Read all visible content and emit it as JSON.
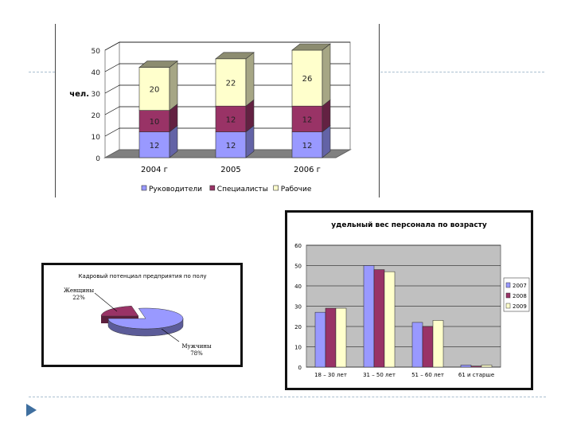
{
  "slide": {
    "accent_color": "#a9bfd0",
    "bullet_color": "#3f6f9f"
  },
  "chart_data": [
    {
      "type": "bar",
      "stacked": true,
      "three_d": true,
      "title": "",
      "ylabel": "чел.",
      "ylim": [
        0,
        50
      ],
      "yticks": [
        "0",
        "10",
        "20",
        "30",
        "40",
        "50"
      ],
      "categories": [
        "2004 г",
        "2005",
        "2006 г"
      ],
      "series": [
        {
          "name": "Руководители",
          "color": "#9999ff",
          "values": [
            12,
            12,
            12
          ]
        },
        {
          "name": "Специалисты",
          "color": "#993366",
          "values": [
            10,
            12,
            12
          ]
        },
        {
          "name": "Рабочие",
          "color": "#ffffcc",
          "values": [
            20,
            22,
            26
          ]
        }
      ],
      "legend": "bottom",
      "grid": true
    },
    {
      "type": "bar",
      "title": "удельный вес персонала по возрасту",
      "ylim": [
        0,
        60
      ],
      "yticks": [
        "0",
        "10",
        "20",
        "30",
        "40",
        "50",
        "60"
      ],
      "categories": [
        "18 – 30 лет",
        "31 – 50 лет",
        "51 – 60 лет",
        "61 и старше"
      ],
      "series": [
        {
          "name": "2007",
          "color": "#9999ff",
          "values": [
            27,
            50,
            22,
            1
          ]
        },
        {
          "name": "2008",
          "color": "#993366",
          "values": [
            29,
            48,
            20,
            0.5
          ]
        },
        {
          "name": "2009",
          "color": "#ffffcc",
          "values": [
            29,
            47,
            23,
            1
          ]
        }
      ],
      "legend": "right",
      "grid": true
    },
    {
      "type": "pie",
      "three_d": true,
      "title": "Кадровый потенциал предприятия по полу",
      "labels": [
        "Женщины",
        "Мужчины"
      ],
      "values": [
        22,
        78
      ],
      "value_labels": [
        "22%",
        "78%"
      ],
      "colors": [
        "#993366",
        "#9999ff"
      ]
    }
  ]
}
